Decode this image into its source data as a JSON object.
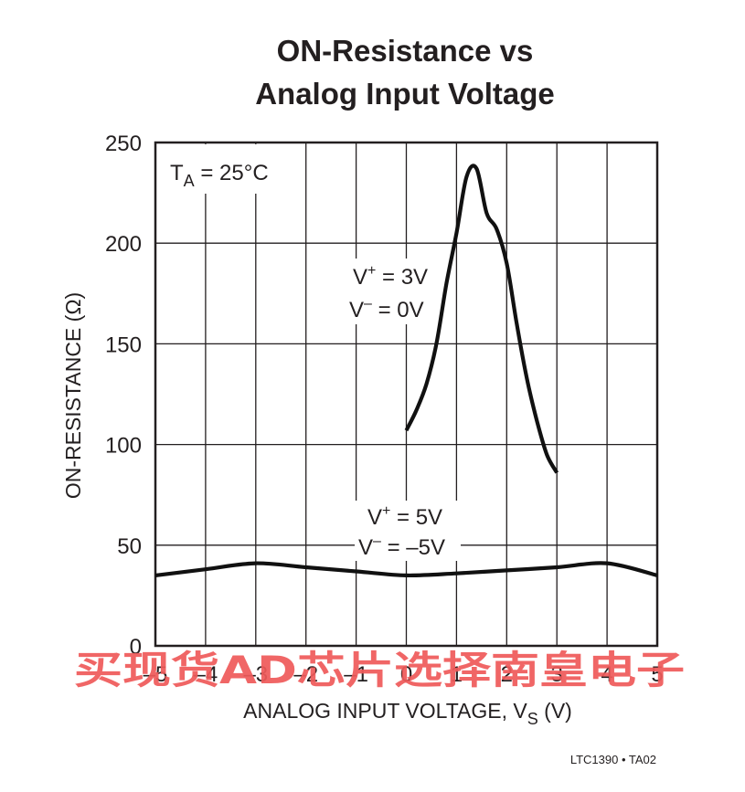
{
  "chart_data": {
    "type": "line",
    "title_line1": "ON-Resistance vs",
    "title_line2": "Analog Input Voltage",
    "xlabel_main": "ANALOG INPUT VOLTAGE, V",
    "xlabel_sub": "S",
    "xlabel_unit": "(V)",
    "ylabel": "ON-RESISTANCE (Ω)",
    "xlim": [
      -5,
      5
    ],
    "ylim": [
      0,
      250
    ],
    "x_ticks": [
      -5,
      -4,
      -3,
      -2,
      -1,
      0,
      1,
      2,
      3,
      4,
      5
    ],
    "x_tick_labels": [
      "–5",
      "–4",
      "–3",
      "–2",
      "–1",
      "0",
      "1",
      "2",
      "3",
      "4",
      "5"
    ],
    "y_ticks": [
      0,
      50,
      100,
      150,
      200,
      250
    ],
    "y_tick_labels": [
      "0",
      "50",
      "100",
      "150",
      "200",
      "250"
    ],
    "grid": true,
    "series": [
      {
        "label_line1": {
          "main": "V",
          "sup": "+",
          "rest": " = 3V"
        },
        "label_line2": {
          "main": "V",
          "sup": "–",
          "rest": " = 0V"
        },
        "x": [
          0,
          0.2,
          0.4,
          0.6,
          0.8,
          1.0,
          1.2,
          1.4,
          1.6,
          1.8,
          2.0,
          2.2,
          2.4,
          2.6,
          2.8,
          3.0
        ],
        "y": [
          107,
          117,
          130,
          150,
          180,
          205,
          233,
          237,
          215,
          207,
          190,
          160,
          133,
          112,
          95,
          86
        ]
      },
      {
        "label_line1": {
          "main": "V",
          "sup": "+",
          "rest": " = 5V"
        },
        "label_line2": {
          "main": "V",
          "sup": "–",
          "rest": " = –5V"
        },
        "x": [
          -5,
          -4,
          -3,
          -2,
          -1,
          0,
          1,
          2,
          3,
          4,
          5
        ],
        "y": [
          35,
          38,
          41,
          39,
          37,
          35,
          36,
          37.5,
          39,
          41,
          35
        ]
      }
    ],
    "annotation_temp": {
      "main": "T",
      "sub": "A",
      "rest": " = 25°C"
    }
  },
  "watermark": "买现货AD芯片选择南皇电子",
  "figure_code": "LTC1390 • TA02"
}
